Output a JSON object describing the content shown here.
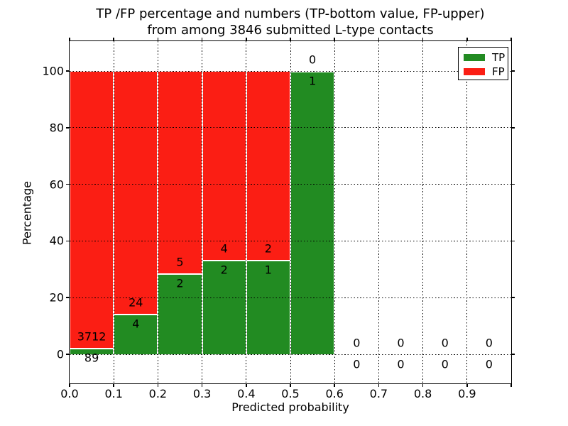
{
  "figure": {
    "title_line1": "TP /FP percentage and numbers (TP-bottom value, FP-upper)",
    "title_line2": "from among 3846 submitted L-type contacts"
  },
  "chart_data": {
    "type": "bar",
    "stacked": true,
    "title": "TP /FP percentage and numbers (TP-bottom value, FP-upper)\nfrom among 3846 submitted L-type contacts",
    "xlabel": "Predicted probability",
    "ylabel": "Percentage",
    "xlim": [
      0.0,
      1.0
    ],
    "ylim": [
      -10.5,
      110.5
    ],
    "bin_edges": [
      0.0,
      0.1,
      0.2,
      0.3,
      0.4,
      0.5,
      0.6,
      0.7,
      0.8,
      0.9,
      1.0
    ],
    "x_tick_labels": [
      "0.0",
      "0.1",
      "0.2",
      "0.3",
      "0.4",
      "0.5",
      "0.6",
      "0.7",
      "0.8",
      "0.9"
    ],
    "y_tick_values": [
      0,
      20,
      40,
      60,
      80,
      100
    ],
    "grid": "dotted-black-both-axes",
    "legend_position": "upper-right",
    "series": [
      {
        "name": "TP",
        "color": "#228B22",
        "counts": [
          89,
          4,
          2,
          2,
          1,
          1,
          0,
          0,
          0,
          0
        ],
        "percent": [
          2.34,
          14.29,
          28.57,
          33.33,
          33.33,
          100,
          0,
          0,
          0,
          0
        ]
      },
      {
        "name": "FP",
        "color": "#fb1e14",
        "counts": [
          3712,
          24,
          5,
          4,
          2,
          0,
          0,
          0,
          0,
          0
        ],
        "percent": [
          97.66,
          85.71,
          71.43,
          66.67,
          66.67,
          0,
          0,
          0,
          0,
          0
        ]
      }
    ],
    "colors": {
      "tp": "#228B22",
      "fp": "#fb1e14",
      "bar_edge": "#ffffff",
      "grid": "#000000",
      "frame": "#000000",
      "background": "#ffffff"
    }
  }
}
